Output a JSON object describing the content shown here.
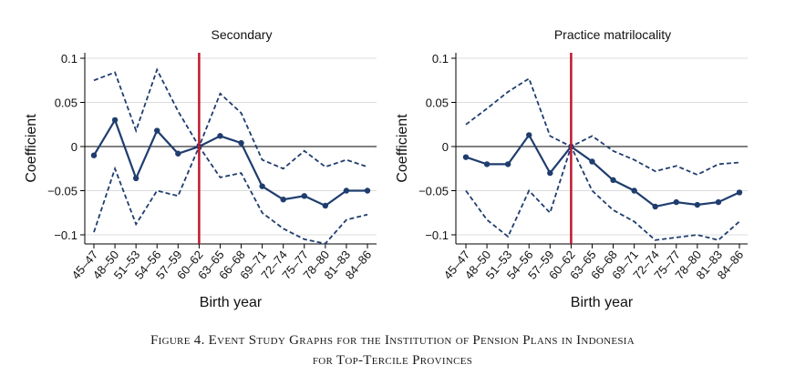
{
  "caption": {
    "line1": "Figure 4. Event Study Graphs for the Institution of Pension Plans in Indonesia",
    "line2": "for Top-Tercile Provinces"
  },
  "colors": {
    "estimate": "#1f3d6e",
    "ci": "#1f3d6e",
    "event_line": "#c0182c",
    "grid": "#dcdcdc"
  },
  "chart_data": [
    {
      "type": "line",
      "title": "Secondary",
      "xlabel": "Birth year",
      "ylabel": "Coefficient",
      "categories": [
        "45–47",
        "48–50",
        "51–53",
        "54–56",
        "57–59",
        "60–62",
        "63–65",
        "66–68",
        "69–71",
        "72–74",
        "75–77",
        "78–80",
        "81–83",
        "84–86"
      ],
      "yticks": [
        0.1,
        0.05,
        0,
        -0.05,
        -0.1
      ],
      "ytick_labels": [
        "0.1",
        "0.05",
        "0",
        "−0.05",
        "−0.1"
      ],
      "ylim": [
        -0.11,
        0.1
      ],
      "event_category": "60–62",
      "grid": true,
      "series": [
        {
          "role": "estimate",
          "values": [
            -0.01,
            0.03,
            -0.036,
            0.018,
            -0.008,
            0,
            0.012,
            0.004,
            -0.045,
            -0.06,
            -0.056,
            -0.067,
            -0.05,
            -0.05
          ]
        },
        {
          "role": "upper",
          "values": [
            0.075,
            0.084,
            0.018,
            0.087,
            0.04,
            0,
            0.06,
            0.038,
            -0.015,
            -0.025,
            -0.005,
            -0.023,
            -0.015,
            -0.023
          ]
        },
        {
          "role": "lower",
          "values": [
            -0.097,
            -0.025,
            -0.088,
            -0.05,
            -0.056,
            0,
            -0.035,
            -0.03,
            -0.075,
            -0.093,
            -0.105,
            -0.11,
            -0.083,
            -0.077
          ]
        }
      ]
    },
    {
      "type": "line",
      "title": "Practice matrilocality",
      "xlabel": "Birth year",
      "ylabel": "Coefficient",
      "categories": [
        "45–47",
        "48–50",
        "51–53",
        "54–56",
        "57–59",
        "60–62",
        "63–65",
        "66–68",
        "69–71",
        "72–74",
        "75–77",
        "78–80",
        "81–83",
        "84–86"
      ],
      "yticks": [
        0.1,
        0.05,
        0,
        -0.05,
        -0.1
      ],
      "ytick_labels": [
        "0.1",
        "0.05",
        "0",
        "−0.05",
        "−0.1"
      ],
      "ylim": [
        -0.11,
        0.1
      ],
      "event_category": "60–62",
      "grid": true,
      "series": [
        {
          "role": "estimate",
          "values": [
            -0.012,
            -0.02,
            -0.02,
            0.013,
            -0.03,
            0,
            -0.017,
            -0.038,
            -0.05,
            -0.068,
            -0.063,
            -0.066,
            -0.063,
            -0.052
          ]
        },
        {
          "role": "upper",
          "values": [
            0.025,
            0.043,
            0.062,
            0.077,
            0.012,
            0,
            0.012,
            -0.005,
            -0.015,
            -0.028,
            -0.022,
            -0.032,
            -0.02,
            -0.018
          ]
        },
        {
          "role": "lower",
          "values": [
            -0.05,
            -0.083,
            -0.102,
            -0.05,
            -0.075,
            0,
            -0.05,
            -0.072,
            -0.085,
            -0.106,
            -0.103,
            -0.1,
            -0.106,
            -0.085
          ]
        }
      ]
    }
  ]
}
